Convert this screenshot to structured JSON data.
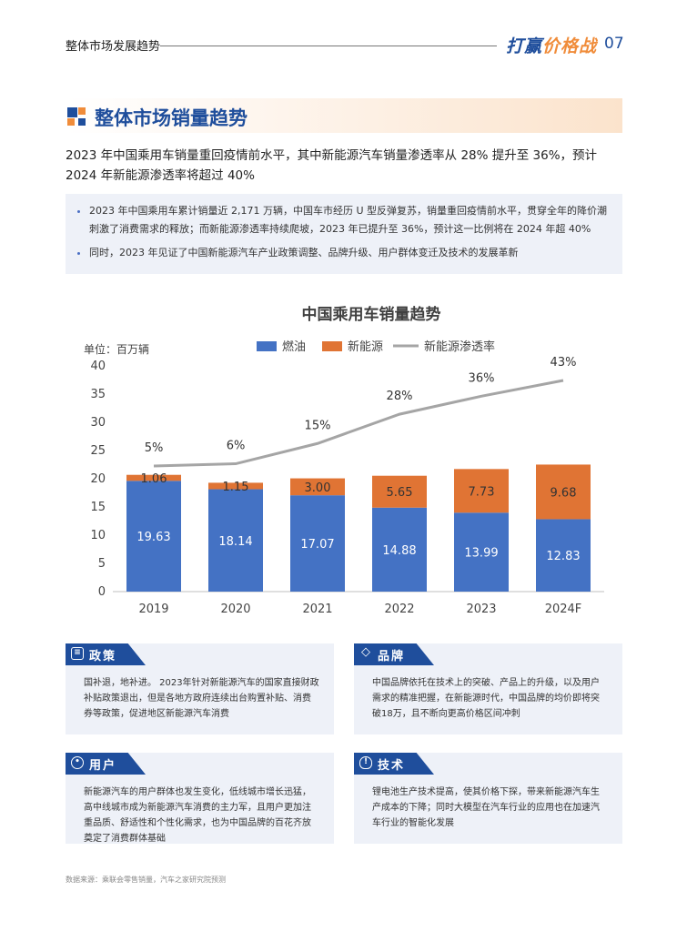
{
  "header": {
    "section": "整体市场发展趋势",
    "brand_main": "打赢",
    "brand_accent": "价格战",
    "page_number": "07"
  },
  "title": "整体市场销量趋势",
  "lead": "2023 年中国乘用车销量重回疫情前水平，其中新能源汽车销量渗透率从 28% 提升至 36%，预计 2024 年新能源渗透率将超过 40%",
  "bullets": [
    "2023 年中国乘用车累计销量近 2,171 万辆，中国车市经历 U 型反弹复苏，销量重回疫情前水平，贯穿全年的降价潮刺激了消费需求的释放；而新能源渗透率持续爬坡，2023 年已提升至 36%，预计这一比例将在 2024 年超 40%",
    "同时，2023 年见证了中国新能源汽车产业政策调整、品牌升级、用户群体变迁及技术的发展革新"
  ],
  "chart_data": {
    "type": "bar",
    "title": "中国乘用车销量趋势",
    "unit_label": "单位：百万辆",
    "categories": [
      "2019",
      "2020",
      "2021",
      "2022",
      "2023",
      "2024F"
    ],
    "series": [
      {
        "name": "燃油",
        "type": "bar",
        "stacked": true,
        "color": "#4472c4",
        "values": [
          19.63,
          18.14,
          17.07,
          14.88,
          13.99,
          12.83
        ]
      },
      {
        "name": "新能源",
        "type": "bar",
        "stacked": true,
        "color": "#e07434",
        "values": [
          1.06,
          1.15,
          3.0,
          5.65,
          7.73,
          9.68
        ]
      },
      {
        "name": "新能源渗透率",
        "type": "line",
        "color": "#a5a5a5",
        "values": [
          5,
          6,
          15,
          28,
          36,
          43
        ],
        "labels": [
          "5%",
          "6%",
          "15%",
          "28%",
          "36%",
          "43%"
        ]
      }
    ],
    "ylim": [
      0,
      40
    ],
    "yticks": [
      0,
      5,
      10,
      15,
      20,
      25,
      30,
      35,
      40
    ],
    "legend_position": "top",
    "grid": false
  },
  "cards": {
    "policy": {
      "icon": "policy-document-icon",
      "title": "政策",
      "body": "国补退，地补进。 2023年针对新能源汽车的国家直接财政补贴政策退出，但是各地方政府连续出台购置补贴、消费券等政策，促进地区新能源汽车消费"
    },
    "brand": {
      "icon": "diamond-icon",
      "title": "品牌",
      "body": "中国品牌依托在技术上的突破、产品上的升级，以及用户需求的精准把握，在新能源时代，中国品牌的均价即将突破18万，且不断向更高价格区间冲刺"
    },
    "user": {
      "icon": "user-icon",
      "title": "用户",
      "body": "新能源汽车的用户群体也发生变化，低线城市增长迅猛，高中线城市成为新能源汽车消费的主力军，且用户更加注重品质、舒适性和个性化需求，也为中国品牌的百花齐放奠定了消费群体基础"
    },
    "tech": {
      "icon": "lightbulb-icon",
      "title": "技术",
      "body": "锂电池生产技术提高，使其价格下探，带来新能源汽车生产成本的下降；同时大模型在汽车行业的应用也在加速汽车行业的智能化发展"
    }
  },
  "source": "数据来源：乘联会零售销量，汽车之家研究院预测"
}
